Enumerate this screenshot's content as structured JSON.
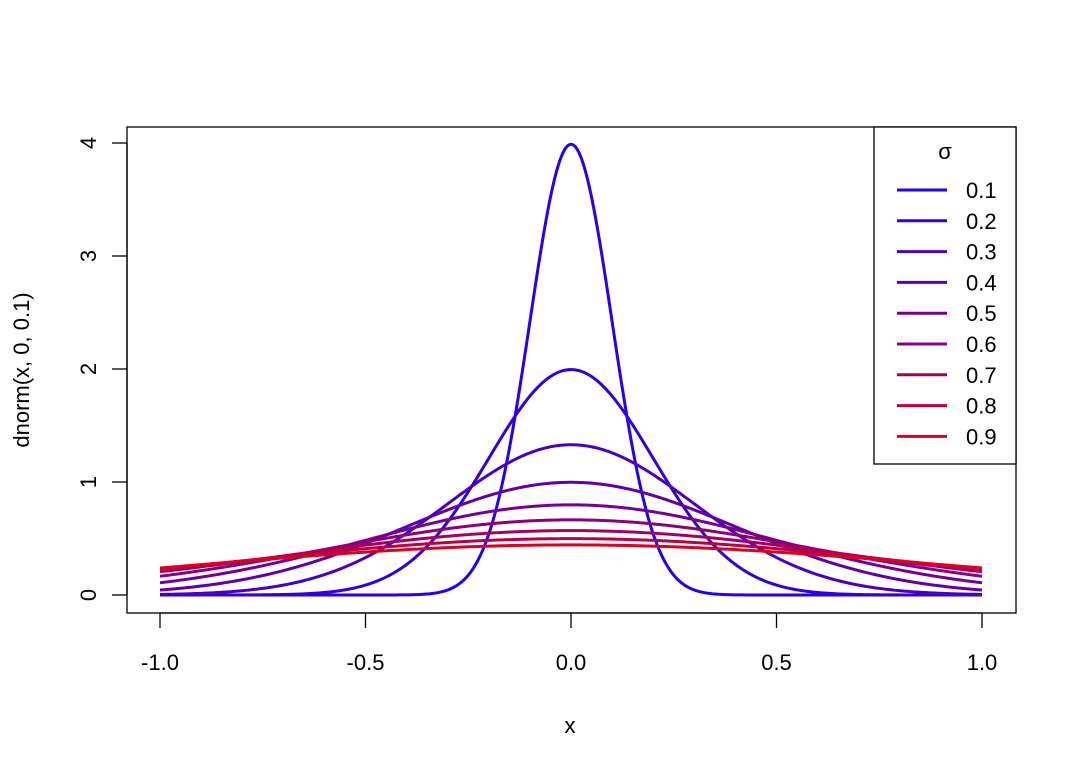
{
  "chart_data": {
    "type": "line",
    "title": "",
    "xlabel": "x",
    "ylabel": "dnorm(x, 0, 0.1)",
    "xlim": [
      -1.0,
      1.0
    ],
    "ylim": [
      0,
      4
    ],
    "grid": false,
    "x_ticks": [
      "-1.0",
      "-0.5",
      "0.0",
      "0.5",
      "1.0"
    ],
    "y_ticks": [
      "0",
      "1",
      "2",
      "3",
      "4"
    ],
    "legend": {
      "title": "σ",
      "position": "top-right"
    },
    "function": "normal density, mean 0",
    "series": [
      {
        "name": "0.1",
        "sigma": 0.1,
        "peak": 3.99,
        "color": "#2200ff"
      },
      {
        "name": "0.2",
        "sigma": 0.2,
        "peak": 1.99,
        "color": "#3300dd"
      },
      {
        "name": "0.3",
        "sigma": 0.3,
        "peak": 1.33,
        "color": "#4a00c4"
      },
      {
        "name": "0.4",
        "sigma": 0.4,
        "peak": 1.0,
        "color": "#6100ab"
      },
      {
        "name": "0.5",
        "sigma": 0.5,
        "peak": 0.8,
        "color": "#770092"
      },
      {
        "name": "0.6",
        "sigma": 0.6,
        "peak": 0.66,
        "color": "#8e0079"
      },
      {
        "name": "0.7",
        "sigma": 0.7,
        "peak": 0.57,
        "color": "#a50060"
      },
      {
        "name": "0.8",
        "sigma": 0.8,
        "peak": 0.5,
        "color": "#bc0047"
      },
      {
        "name": "0.9",
        "sigma": 0.9,
        "peak": 0.44,
        "color": "#dd0022"
      }
    ]
  }
}
